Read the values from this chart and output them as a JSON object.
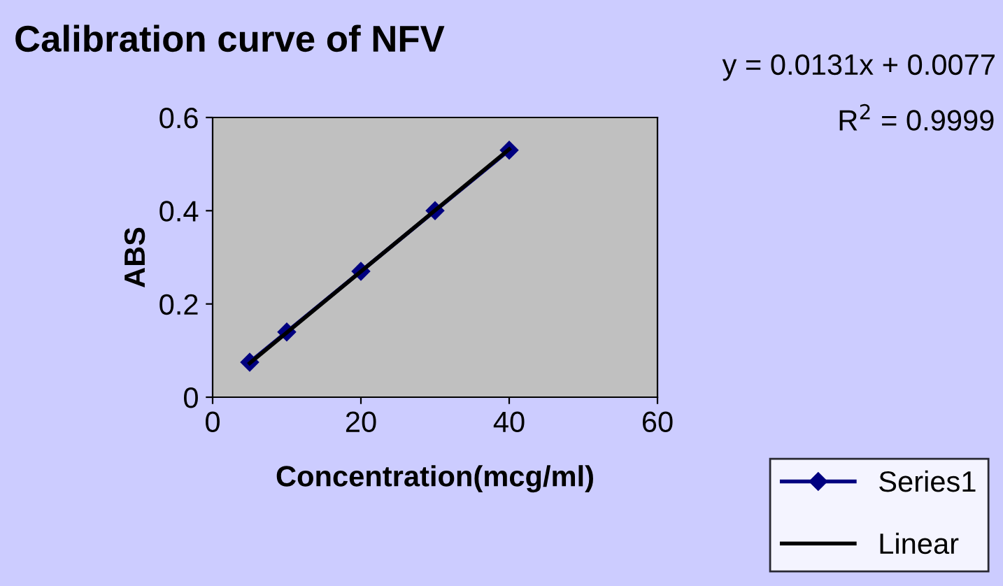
{
  "chart_data": {
    "type": "line",
    "title": "Calibration curve of NFV",
    "xlabel": "Concentration(mcg/ml)",
    "ylabel": "ABS",
    "annotations": [
      "y = 0.0131x + 0.0077",
      "R$^{2}$ = 0.9999"
    ],
    "xlim": [
      0,
      60
    ],
    "xticks": [
      0,
      20,
      40,
      60
    ],
    "ylim": [
      0,
      0.6
    ],
    "yticks": [
      0,
      0.2,
      0.4,
      0.6
    ],
    "grid": false,
    "legend": "bottom right",
    "series": [
      {
        "name": "Series1",
        "color": "#000080",
        "marker": "diamond",
        "x": [
          5,
          10,
          20,
          30,
          40
        ],
        "values": [
          0.075,
          0.14,
          0.27,
          0.4,
          0.53
        ]
      },
      {
        "name": "Linear",
        "color": "#000000",
        "marker": "none",
        "x": [
          5,
          40
        ],
        "values": [
          0.073,
          0.532
        ]
      }
    ]
  }
}
